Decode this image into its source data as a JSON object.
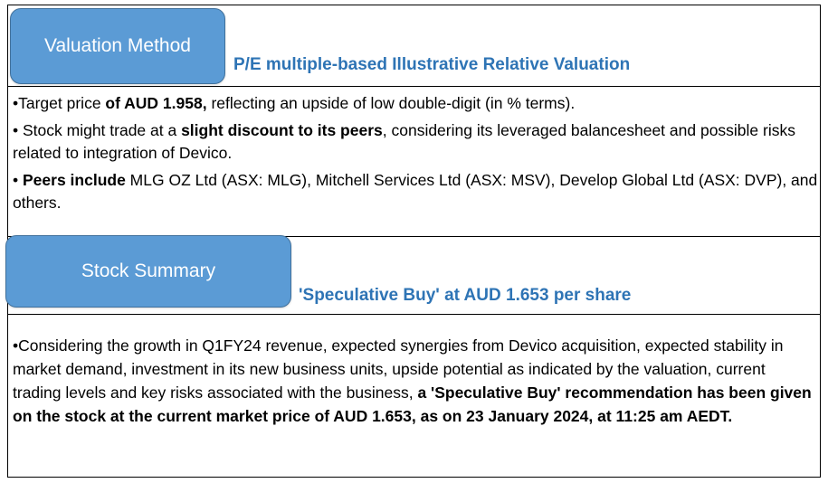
{
  "sections": [
    {
      "tab_label": "Valuation Method",
      "heading": "P/E multiple-based Illustrative Relative Valuation",
      "bullets": [
        [
          {
            "t": "•Target price ",
            "b": false
          },
          {
            "t": "of AUD 1.958,",
            "b": true
          },
          {
            "t": " reflecting an upside of low double-digit (in % terms).",
            "b": false
          }
        ],
        [
          {
            "t": "• Stock might trade at a ",
            "b": false
          },
          {
            "t": "slight discount to its peers",
            "b": true
          },
          {
            "t": ", considering its leveraged balancesheet and possible risks related to integration of Devico.",
            "b": false
          }
        ],
        [
          {
            "t": "• ",
            "b": false
          },
          {
            "t": "Peers include",
            "b": true
          },
          {
            "t": " MLG OZ Ltd (ASX: MLG), Mitchell Services Ltd (ASX: MSV), Develop Global Ltd (ASX: DVP), and others.",
            "b": false
          }
        ]
      ]
    },
    {
      "tab_label": "Stock Summary",
      "heading": "'Speculative Buy' at AUD 1.653 per share",
      "bullets": [
        [
          {
            "t": "•Considering the growth in Q1FY24 revenue, expected synergies from Devico acquisition, expected stability in market demand, investment in its new business units, upside potential as indicated by the valuation, current trading levels and key risks associated with the business, ",
            "b": false
          },
          {
            "t": "a 'Speculative Buy' recommendation has been given on the stock at the current market price of AUD 1.653, as on 23 January 2024, at 11:25 am AEDT.",
            "b": true
          }
        ]
      ]
    }
  ],
  "colors": {
    "tab_bg": "#5B9BD5",
    "tab_border": "#41719C",
    "heading_color": "#2E74B5",
    "frame_color": "#000000"
  }
}
